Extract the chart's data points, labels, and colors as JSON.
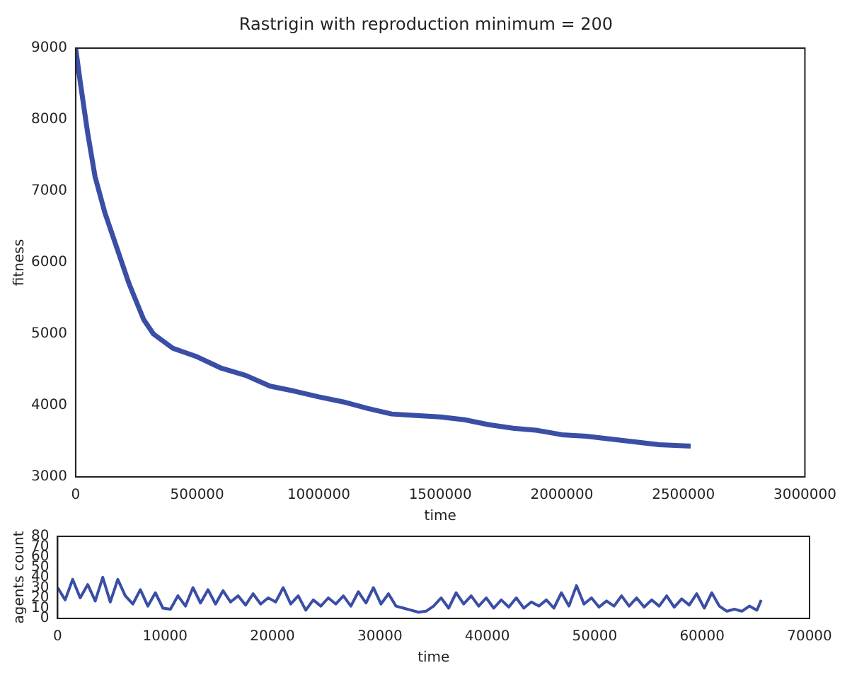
{
  "chart_data": [
    {
      "type": "line",
      "title": "Rastrigin with reproduction minimum = 200",
      "xlabel": "time",
      "ylabel": "fitness",
      "xlim": [
        0,
        3000000
      ],
      "xticks": [
        0,
        500000,
        1000000,
        1500000,
        2000000,
        2500000,
        3000000
      ],
      "ylim": [
        3000,
        9000
      ],
      "yticks": [
        3000,
        4000,
        5000,
        6000,
        7000,
        8000,
        9000
      ],
      "grid": false,
      "legend": false,
      "marker": "none",
      "line_style": "solid",
      "series": [
        {
          "color": "#3a4ea6",
          "x": [
            0,
            20000,
            50000,
            80000,
            120000,
            170000,
            220000,
            280000,
            320000,
            400000,
            500000,
            600000,
            700000,
            800000,
            900000,
            1000000,
            1100000,
            1200000,
            1300000,
            1400000,
            1500000,
            1600000,
            1700000,
            1800000,
            1900000,
            2000000,
            2100000,
            2200000,
            2300000,
            2400000,
            2530000
          ],
          "values": [
            9000,
            8500,
            7800,
            7200,
            6700,
            6200,
            5700,
            5200,
            5000,
            4800,
            4680,
            4520,
            4420,
            4270,
            4200,
            4120,
            4050,
            3960,
            3880,
            3860,
            3840,
            3800,
            3730,
            3680,
            3650,
            3590,
            3570,
            3530,
            3490,
            3450,
            3430
          ]
        }
      ]
    },
    {
      "type": "line",
      "xlabel": "time",
      "ylabel": "agents count",
      "xlim": [
        0,
        70000
      ],
      "xticks": [
        0,
        10000,
        20000,
        30000,
        40000,
        50000,
        60000,
        70000
      ],
      "ylim": [
        0,
        80
      ],
      "yticks": [
        0,
        10,
        20,
        30,
        40,
        50,
        60,
        70,
        80
      ],
      "grid": false,
      "legend": false,
      "marker": "none",
      "line_style": "solid",
      "series": [
        {
          "color": "#3a4ea6",
          "x": [
            0,
            700,
            1400,
            2100,
            2800,
            3500,
            4200,
            4900,
            5600,
            6300,
            7000,
            7700,
            8400,
            9100,
            9800,
            10500,
            11200,
            11900,
            12600,
            13300,
            14000,
            14700,
            15400,
            16100,
            16800,
            17500,
            18200,
            18900,
            19600,
            20300,
            21000,
            21700,
            22400,
            23100,
            23800,
            24500,
            25200,
            25900,
            26600,
            27300,
            28000,
            28700,
            29400,
            30100,
            30800,
            31500,
            32200,
            32900,
            33600,
            34300,
            35000,
            35700,
            36400,
            37100,
            37800,
            38500,
            39200,
            39900,
            40600,
            41300,
            42000,
            42700,
            43400,
            44100,
            44800,
            45500,
            46200,
            46900,
            47600,
            48300,
            49000,
            49700,
            50400,
            51100,
            51800,
            52500,
            53200,
            53900,
            54600,
            55300,
            56000,
            56700,
            57400,
            58100,
            58800,
            59500,
            60200,
            60900,
            61600,
            62300,
            63000,
            63700,
            64400,
            65100,
            65500
          ],
          "values": [
            30,
            18,
            38,
            20,
            33,
            17,
            40,
            16,
            38,
            22,
            14,
            28,
            12,
            25,
            10,
            9,
            22,
            12,
            30,
            15,
            28,
            14,
            27,
            16,
            22,
            13,
            24,
            14,
            20,
            16,
            30,
            14,
            22,
            8,
            18,
            12,
            20,
            14,
            22,
            12,
            26,
            15,
            30,
            14,
            24,
            12,
            10,
            8,
            6,
            7,
            12,
            20,
            10,
            25,
            14,
            22,
            12,
            20,
            10,
            18,
            11,
            20,
            10,
            16,
            12,
            18,
            10,
            25,
            12,
            32,
            14,
            20,
            11,
            17,
            12,
            22,
            12,
            20,
            11,
            18,
            12,
            22,
            11,
            19,
            13,
            24,
            10,
            25,
            12,
            7,
            9,
            7,
            12,
            8,
            18
          ]
        }
      ]
    }
  ]
}
